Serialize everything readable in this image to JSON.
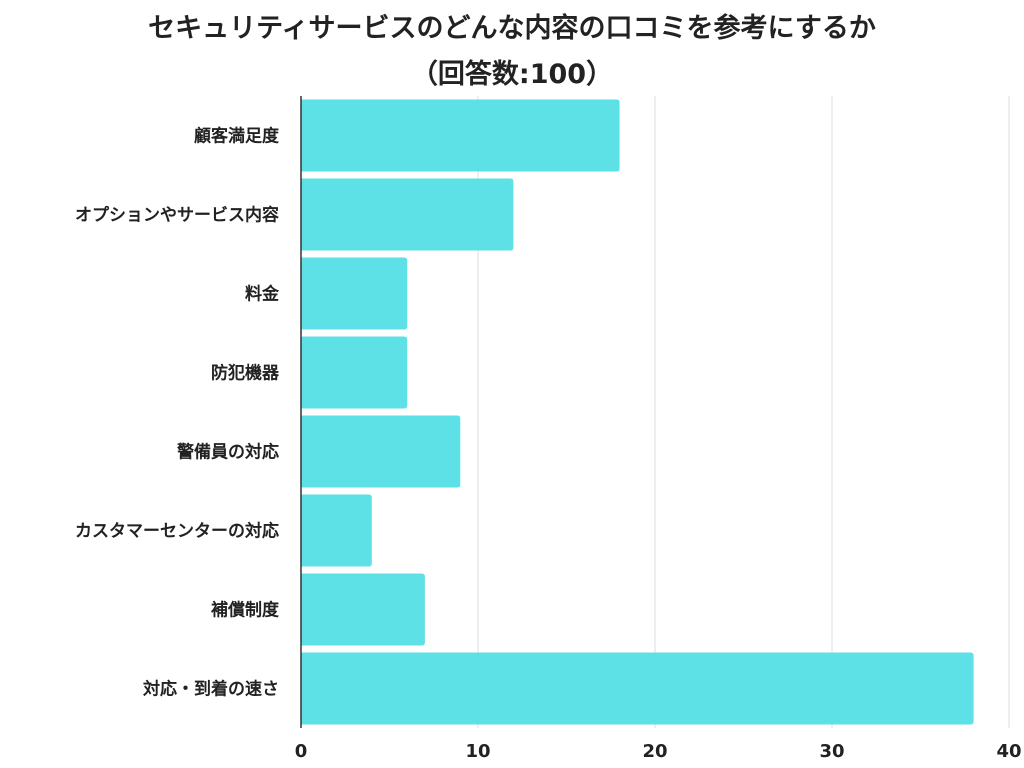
{
  "chart_data": {
    "type": "bar",
    "orientation": "horizontal",
    "title": "セキュリティサービスのどんな内容の口コミを参考にするか",
    "subtitle": "（回答数:100）",
    "categories": [
      "顧客満足度",
      "オプションやサービス内容",
      "料金",
      "防犯機器",
      "警備員の対応",
      "カスタマーセンターの対応",
      "補償制度",
      "対応・到着の速さ"
    ],
    "values": [
      18,
      12,
      6,
      6,
      9,
      4,
      7,
      38
    ],
    "xlim": [
      0,
      40
    ],
    "xticks": [
      0,
      10,
      20,
      30,
      40
    ],
    "xlabel": "",
    "ylabel": "",
    "grid": "vertical",
    "bar_color": "#5ee1e6",
    "grid_color": "#dddddd",
    "axis_color": "#333333",
    "text_color": "#222222"
  }
}
